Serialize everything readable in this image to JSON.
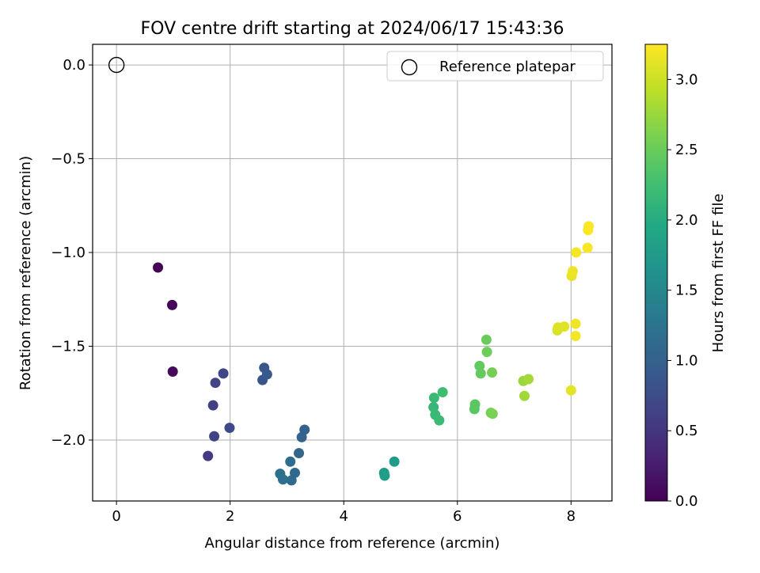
{
  "chart_data": {
    "type": "scatter",
    "title": "FOV centre drift starting at 2024/06/17 15:43:36",
    "xlabel": "Angular distance from reference (arcmin)",
    "ylabel": "Rotation from reference (arcmin)",
    "xlim": [
      -0.42,
      8.72
    ],
    "ylim": [
      -2.325,
      0.11
    ],
    "xticks": [
      0,
      2,
      4,
      6,
      8
    ],
    "yticks": [
      0.0,
      -0.5,
      -1.0,
      -1.5,
      -2.0
    ],
    "xtick_labels": [
      "0",
      "2",
      "4",
      "6",
      "8"
    ],
    "ytick_labels": [
      "0.0",
      "−0.5",
      "−1.0",
      "−1.5",
      "−2.0"
    ],
    "grid": true,
    "legend": {
      "position": "top-right",
      "entries": [
        "Reference platepar"
      ]
    },
    "reference_point": {
      "x": 0,
      "y": 0,
      "marker": "open-circle"
    },
    "colorbar": {
      "label": "Hours from first FF file",
      "colormap": "viridis",
      "range": [
        0,
        3.25
      ],
      "ticks": [
        0.0,
        0.5,
        1.0,
        1.5,
        2.0,
        2.5,
        3.0
      ],
      "tick_labels": [
        "0.0",
        "0.5",
        "1.0",
        "1.5",
        "2.0",
        "2.5",
        "3.0"
      ]
    },
    "series": [
      {
        "x": [
          0.73,
          0.98,
          0.99,
          1.61,
          1.7,
          1.72,
          1.74,
          1.88,
          1.99,
          2.57,
          2.6,
          2.65,
          2.88,
          2.93,
          3.06,
          3.08,
          3.14,
          3.21,
          3.26,
          3.31,
          4.71,
          4.72,
          4.89,
          5.58,
          5.59,
          5.61,
          5.68,
          5.74,
          6.3,
          6.31,
          6.39,
          6.41,
          6.51,
          6.52,
          6.59,
          6.61,
          6.62,
          7.16,
          7.18,
          7.25,
          7.76,
          7.77,
          7.88,
          8.0,
          8.01,
          8.03,
          8.08,
          8.08,
          8.09,
          8.29,
          8.3,
          8.31
        ],
        "y": [
          -1.08,
          -1.28,
          -1.635,
          -2.085,
          -1.815,
          -1.98,
          -1.695,
          -1.645,
          -1.935,
          -1.68,
          -1.615,
          -1.65,
          -2.18,
          -2.21,
          -2.115,
          -2.215,
          -2.175,
          -2.07,
          -1.985,
          -1.945,
          -2.175,
          -2.19,
          -2.115,
          -1.825,
          -1.775,
          -1.865,
          -1.895,
          -1.745,
          -1.835,
          -1.81,
          -1.605,
          -1.645,
          -1.465,
          -1.53,
          -1.855,
          -1.64,
          -1.86,
          -1.685,
          -1.765,
          -1.675,
          -1.415,
          -1.4,
          -1.395,
          -1.735,
          -1.125,
          -1.1,
          -1.38,
          -1.445,
          -1.0,
          -0.975,
          -0.88,
          -0.86
        ],
        "hours": [
          0.02,
          0.05,
          0.08,
          0.55,
          0.6,
          0.63,
          0.66,
          0.69,
          0.72,
          0.85,
          0.88,
          0.91,
          1.2,
          1.17,
          1.14,
          1.12,
          1.09,
          1.07,
          1.04,
          1.02,
          1.78,
          1.8,
          1.76,
          2.15,
          2.17,
          2.18,
          2.2,
          2.22,
          2.4,
          2.42,
          2.45,
          2.47,
          2.5,
          2.52,
          2.55,
          2.57,
          2.6,
          2.75,
          2.78,
          2.8,
          3.05,
          3.08,
          3.1,
          3.12,
          3.14,
          3.16,
          3.18,
          3.2,
          3.21,
          3.22,
          3.23,
          3.24
        ]
      }
    ]
  }
}
